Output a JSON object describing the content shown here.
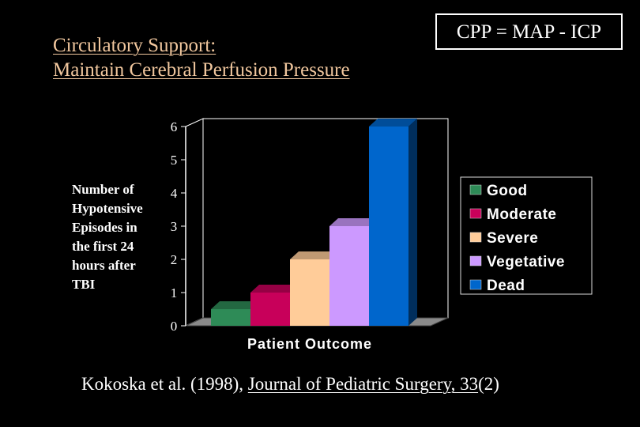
{
  "slide": {
    "title_line1": "Circulatory Support: ",
    "title_line2": "Maintain Cerebral Perfusion Pressure",
    "formula": "CPP = MAP - ICP",
    "citation_prefix": "Kokoska et al. (1998), ",
    "citation_journal": "Journal of Pediatric Surgery, 33",
    "citation_suffix": "(2)"
  },
  "chart_data": {
    "type": "bar",
    "categories": [
      "Good",
      "Moderate",
      "Severe",
      "Vegetative",
      "Dead"
    ],
    "values": [
      0.5,
      1,
      2,
      3,
      6
    ],
    "colors": [
      "#2e8b57",
      "#c8005a",
      "#ffcc99",
      "#cc99ff",
      "#0066cc"
    ],
    "xlabel": "Patient Outcome",
    "ylabel_lines": [
      "Number of",
      "Hypotensive",
      "Episodes in",
      "the first 24",
      "hours after",
      "TBI"
    ],
    "yticks": [
      "0",
      "1",
      "2",
      "3",
      "4",
      "5",
      "6"
    ],
    "ylim": [
      0,
      6
    ],
    "legend_position": "right",
    "style": "3d",
    "grid": false
  }
}
